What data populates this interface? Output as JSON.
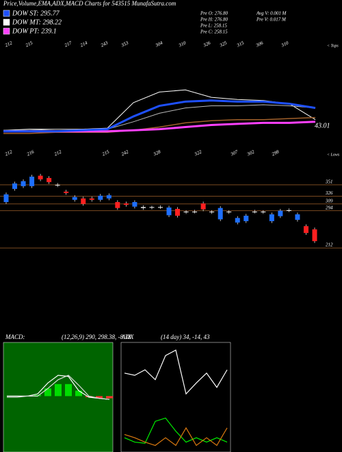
{
  "header": {
    "title": "Price,Volume,EMA,ADX,MACD Charts for 543515 MunafaSutra.com",
    "legend": [
      {
        "name": "DOW ST: 295.77",
        "color": "#1e50ff"
      },
      {
        "name": "DOW MT: 298.22",
        "color": "#ffffff"
      },
      {
        "name": "DOW PT: 239.1",
        "color": "#ff40ff"
      }
    ],
    "stats": [
      "Pre  O: 276.80",
      "Pre  H: 276.80",
      "Pre  L: 258.15",
      "Pre  C: 258.15",
      "Avg V: 0.001 M",
      "Pre  V: 0.017 M"
    ]
  },
  "chart_data": [
    {
      "type": "line",
      "ylim": [
        0,
        100
      ],
      "x": [
        0,
        1,
        2,
        3,
        4,
        5,
        6,
        7,
        8,
        9,
        10,
        11,
        12
      ],
      "xlim": [
        0,
        12
      ],
      "tops": [
        "212",
        "215",
        "217",
        "214",
        "243",
        "353",
        "304",
        "310",
        "326",
        "325",
        "315",
        "306",
        "310"
      ],
      "tops_label": "< Tops",
      "lows": [
        "212",
        "216",
        "212",
        "215",
        "242",
        "328",
        "322",
        "307",
        "302",
        "298"
      ],
      "lows_label": "< Lows",
      "side_label": "43.01",
      "series": [
        {
          "name": "price",
          "color": "#ffffff",
          "width": 1,
          "values": [
            16,
            17,
            17,
            17,
            18,
            42,
            52,
            54,
            47,
            45,
            44,
            41,
            26
          ]
        },
        {
          "name": "grey",
          "color": "#bbbbbb",
          "width": 1,
          "values": [
            16,
            16,
            17,
            17,
            17,
            24,
            32,
            37,
            39,
            39,
            40,
            39,
            37
          ]
        },
        {
          "name": "brown",
          "color": "#a0602a",
          "width": 1.5,
          "values": [
            13,
            13,
            14,
            14,
            14,
            16,
            19,
            23,
            25,
            26,
            26,
            27,
            28
          ]
        },
        {
          "name": "magenta",
          "color": "#ff40ff",
          "width": 3,
          "values": [
            15,
            15,
            15,
            15,
            15,
            16,
            17,
            19,
            21,
            22,
            23,
            23,
            24
          ]
        },
        {
          "name": "blue",
          "color": "#1e50ff",
          "width": 3,
          "values": [
            15,
            15,
            15,
            16,
            17,
            29,
            39,
            43,
            44,
            43,
            43,
            41,
            37
          ]
        }
      ]
    },
    {
      "type": "candlestick",
      "ylim": [
        185,
        396
      ],
      "yticks": [
        351,
        326,
        309,
        294,
        212
      ],
      "colors": {
        "up": "#1e6fff",
        "down": "#ff2020",
        "doji": "#ffffff"
      },
      "open": [
        313,
        342,
        348,
        348,
        371,
        366,
        351,
        336,
        318,
        321,
        321,
        318,
        321,
        313,
        310,
        303,
        302,
        301,
        302,
        284,
        298,
        291,
        292,
        310,
        291,
        275,
        291,
        268,
        271,
        292,
        291,
        271,
        282,
        295,
        274,
        260,
        253
      ],
      "high": [
        334,
        358,
        363,
        373,
        375,
        370,
        355,
        340,
        328,
        325,
        325,
        331,
        332,
        317,
        314,
        317,
        306,
        305,
        306,
        305,
        302,
        295,
        296,
        314,
        295,
        304,
        295,
        282,
        287,
        296,
        295,
        290,
        298,
        299,
        290,
        264,
        257
      ],
      "low": [
        309,
        338,
        344,
        344,
        359,
        353,
        346,
        329,
        314,
        305,
        314,
        314,
        317,
        296,
        303,
        299,
        296,
        297,
        298,
        280,
        279,
        287,
        288,
        293,
        287,
        271,
        287,
        264,
        267,
        288,
        287,
        267,
        278,
        291,
        270,
        241,
        223
      ],
      "close": [
        330,
        354,
        359,
        369,
        363,
        357,
        350,
        333,
        324,
        309,
        318,
        327,
        328,
        300,
        307,
        313,
        300,
        302,
        301,
        301,
        283,
        292,
        291,
        297,
        292,
        300,
        292,
        278,
        283,
        291,
        292,
        286,
        294,
        294,
        286,
        245,
        227
      ]
    },
    {
      "type": "line",
      "label": "MACD:",
      "params": "(12,26,9) 290, 298.38, -8.38",
      "ylim": [
        0,
        100
      ],
      "xlim": [
        0,
        10
      ],
      "x": [
        0,
        1,
        2,
        3,
        4,
        5,
        6,
        7,
        8,
        9,
        10
      ],
      "histogram": [
        51,
        51,
        51,
        52,
        58,
        62,
        62,
        56,
        50,
        49,
        49
      ],
      "series": [
        {
          "name": "macd",
          "color": "#ffffff",
          "values": [
            51,
            51,
            51,
            53,
            63,
            70,
            69,
            56,
            50,
            49,
            48
          ]
        },
        {
          "name": "signal",
          "color": "#dddddd",
          "values": [
            50,
            50,
            51,
            51,
            58,
            66,
            70,
            61,
            51,
            49,
            48
          ]
        }
      ]
    },
    {
      "type": "line",
      "label": "ADX",
      "params": "(14 day) 34, -14, 43",
      "ylim": [
        0,
        100
      ],
      "xlim": [
        0,
        10
      ],
      "x": [
        0,
        1,
        2,
        3,
        4,
        5,
        6,
        7,
        8,
        9,
        10
      ],
      "series": [
        {
          "name": "adx",
          "color": "#ffffff",
          "values": [
            72,
            70,
            75,
            66,
            88,
            93,
            53,
            63,
            72,
            59,
            75
          ]
        },
        {
          "name": "plus",
          "color": "#00ee00",
          "values": [
            13,
            9,
            8,
            28,
            31,
            19,
            9,
            13,
            9,
            13,
            9
          ]
        },
        {
          "name": "minus",
          "color": "#dd7a10",
          "values": [
            16,
            13,
            9,
            6,
            13,
            6,
            22,
            6,
            13,
            6,
            22
          ]
        }
      ]
    }
  ]
}
